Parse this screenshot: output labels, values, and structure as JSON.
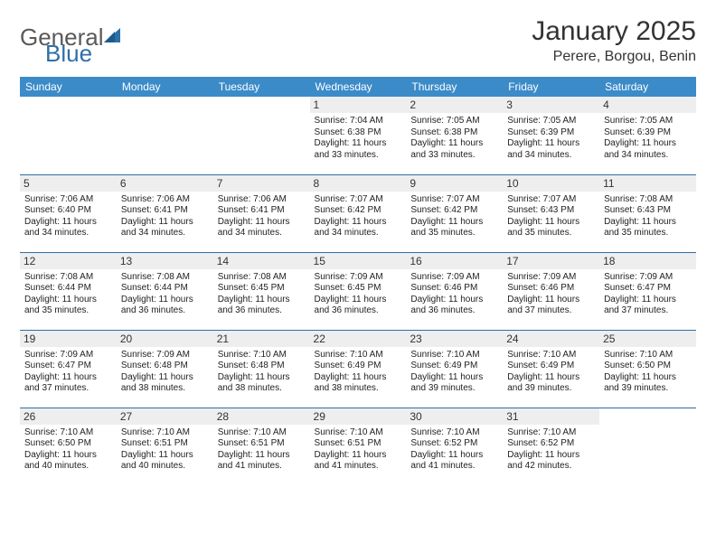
{
  "logo": {
    "text1": "General",
    "text2": "Blue"
  },
  "title": "January 2025",
  "location": "Perere, Borgou, Benin",
  "header_bg": "#3b8bc9",
  "daynum_bg": "#eeeeee",
  "border_color": "#2f6fa8",
  "days_of_week": [
    "Sunday",
    "Monday",
    "Tuesday",
    "Wednesday",
    "Thursday",
    "Friday",
    "Saturday"
  ],
  "weeks": [
    [
      {
        "num": "",
        "sunrise": "",
        "sunset": "",
        "daylight": ""
      },
      {
        "num": "",
        "sunrise": "",
        "sunset": "",
        "daylight": ""
      },
      {
        "num": "",
        "sunrise": "",
        "sunset": "",
        "daylight": ""
      },
      {
        "num": "1",
        "sunrise": "Sunrise: 7:04 AM",
        "sunset": "Sunset: 6:38 PM",
        "daylight": "Daylight: 11 hours and 33 minutes."
      },
      {
        "num": "2",
        "sunrise": "Sunrise: 7:05 AM",
        "sunset": "Sunset: 6:38 PM",
        "daylight": "Daylight: 11 hours and 33 minutes."
      },
      {
        "num": "3",
        "sunrise": "Sunrise: 7:05 AM",
        "sunset": "Sunset: 6:39 PM",
        "daylight": "Daylight: 11 hours and 34 minutes."
      },
      {
        "num": "4",
        "sunrise": "Sunrise: 7:05 AM",
        "sunset": "Sunset: 6:39 PM",
        "daylight": "Daylight: 11 hours and 34 minutes."
      }
    ],
    [
      {
        "num": "5",
        "sunrise": "Sunrise: 7:06 AM",
        "sunset": "Sunset: 6:40 PM",
        "daylight": "Daylight: 11 hours and 34 minutes."
      },
      {
        "num": "6",
        "sunrise": "Sunrise: 7:06 AM",
        "sunset": "Sunset: 6:41 PM",
        "daylight": "Daylight: 11 hours and 34 minutes."
      },
      {
        "num": "7",
        "sunrise": "Sunrise: 7:06 AM",
        "sunset": "Sunset: 6:41 PM",
        "daylight": "Daylight: 11 hours and 34 minutes."
      },
      {
        "num": "8",
        "sunrise": "Sunrise: 7:07 AM",
        "sunset": "Sunset: 6:42 PM",
        "daylight": "Daylight: 11 hours and 34 minutes."
      },
      {
        "num": "9",
        "sunrise": "Sunrise: 7:07 AM",
        "sunset": "Sunset: 6:42 PM",
        "daylight": "Daylight: 11 hours and 35 minutes."
      },
      {
        "num": "10",
        "sunrise": "Sunrise: 7:07 AM",
        "sunset": "Sunset: 6:43 PM",
        "daylight": "Daylight: 11 hours and 35 minutes."
      },
      {
        "num": "11",
        "sunrise": "Sunrise: 7:08 AM",
        "sunset": "Sunset: 6:43 PM",
        "daylight": "Daylight: 11 hours and 35 minutes."
      }
    ],
    [
      {
        "num": "12",
        "sunrise": "Sunrise: 7:08 AM",
        "sunset": "Sunset: 6:44 PM",
        "daylight": "Daylight: 11 hours and 35 minutes."
      },
      {
        "num": "13",
        "sunrise": "Sunrise: 7:08 AM",
        "sunset": "Sunset: 6:44 PM",
        "daylight": "Daylight: 11 hours and 36 minutes."
      },
      {
        "num": "14",
        "sunrise": "Sunrise: 7:08 AM",
        "sunset": "Sunset: 6:45 PM",
        "daylight": "Daylight: 11 hours and 36 minutes."
      },
      {
        "num": "15",
        "sunrise": "Sunrise: 7:09 AM",
        "sunset": "Sunset: 6:45 PM",
        "daylight": "Daylight: 11 hours and 36 minutes."
      },
      {
        "num": "16",
        "sunrise": "Sunrise: 7:09 AM",
        "sunset": "Sunset: 6:46 PM",
        "daylight": "Daylight: 11 hours and 36 minutes."
      },
      {
        "num": "17",
        "sunrise": "Sunrise: 7:09 AM",
        "sunset": "Sunset: 6:46 PM",
        "daylight": "Daylight: 11 hours and 37 minutes."
      },
      {
        "num": "18",
        "sunrise": "Sunrise: 7:09 AM",
        "sunset": "Sunset: 6:47 PM",
        "daylight": "Daylight: 11 hours and 37 minutes."
      }
    ],
    [
      {
        "num": "19",
        "sunrise": "Sunrise: 7:09 AM",
        "sunset": "Sunset: 6:47 PM",
        "daylight": "Daylight: 11 hours and 37 minutes."
      },
      {
        "num": "20",
        "sunrise": "Sunrise: 7:09 AM",
        "sunset": "Sunset: 6:48 PM",
        "daylight": "Daylight: 11 hours and 38 minutes."
      },
      {
        "num": "21",
        "sunrise": "Sunrise: 7:10 AM",
        "sunset": "Sunset: 6:48 PM",
        "daylight": "Daylight: 11 hours and 38 minutes."
      },
      {
        "num": "22",
        "sunrise": "Sunrise: 7:10 AM",
        "sunset": "Sunset: 6:49 PM",
        "daylight": "Daylight: 11 hours and 38 minutes."
      },
      {
        "num": "23",
        "sunrise": "Sunrise: 7:10 AM",
        "sunset": "Sunset: 6:49 PM",
        "daylight": "Daylight: 11 hours and 39 minutes."
      },
      {
        "num": "24",
        "sunrise": "Sunrise: 7:10 AM",
        "sunset": "Sunset: 6:49 PM",
        "daylight": "Daylight: 11 hours and 39 minutes."
      },
      {
        "num": "25",
        "sunrise": "Sunrise: 7:10 AM",
        "sunset": "Sunset: 6:50 PM",
        "daylight": "Daylight: 11 hours and 39 minutes."
      }
    ],
    [
      {
        "num": "26",
        "sunrise": "Sunrise: 7:10 AM",
        "sunset": "Sunset: 6:50 PM",
        "daylight": "Daylight: 11 hours and 40 minutes."
      },
      {
        "num": "27",
        "sunrise": "Sunrise: 7:10 AM",
        "sunset": "Sunset: 6:51 PM",
        "daylight": "Daylight: 11 hours and 40 minutes."
      },
      {
        "num": "28",
        "sunrise": "Sunrise: 7:10 AM",
        "sunset": "Sunset: 6:51 PM",
        "daylight": "Daylight: 11 hours and 41 minutes."
      },
      {
        "num": "29",
        "sunrise": "Sunrise: 7:10 AM",
        "sunset": "Sunset: 6:51 PM",
        "daylight": "Daylight: 11 hours and 41 minutes."
      },
      {
        "num": "30",
        "sunrise": "Sunrise: 7:10 AM",
        "sunset": "Sunset: 6:52 PM",
        "daylight": "Daylight: 11 hours and 41 minutes."
      },
      {
        "num": "31",
        "sunrise": "Sunrise: 7:10 AM",
        "sunset": "Sunset: 6:52 PM",
        "daylight": "Daylight: 11 hours and 42 minutes."
      },
      {
        "num": "",
        "sunrise": "",
        "sunset": "",
        "daylight": ""
      }
    ]
  ]
}
